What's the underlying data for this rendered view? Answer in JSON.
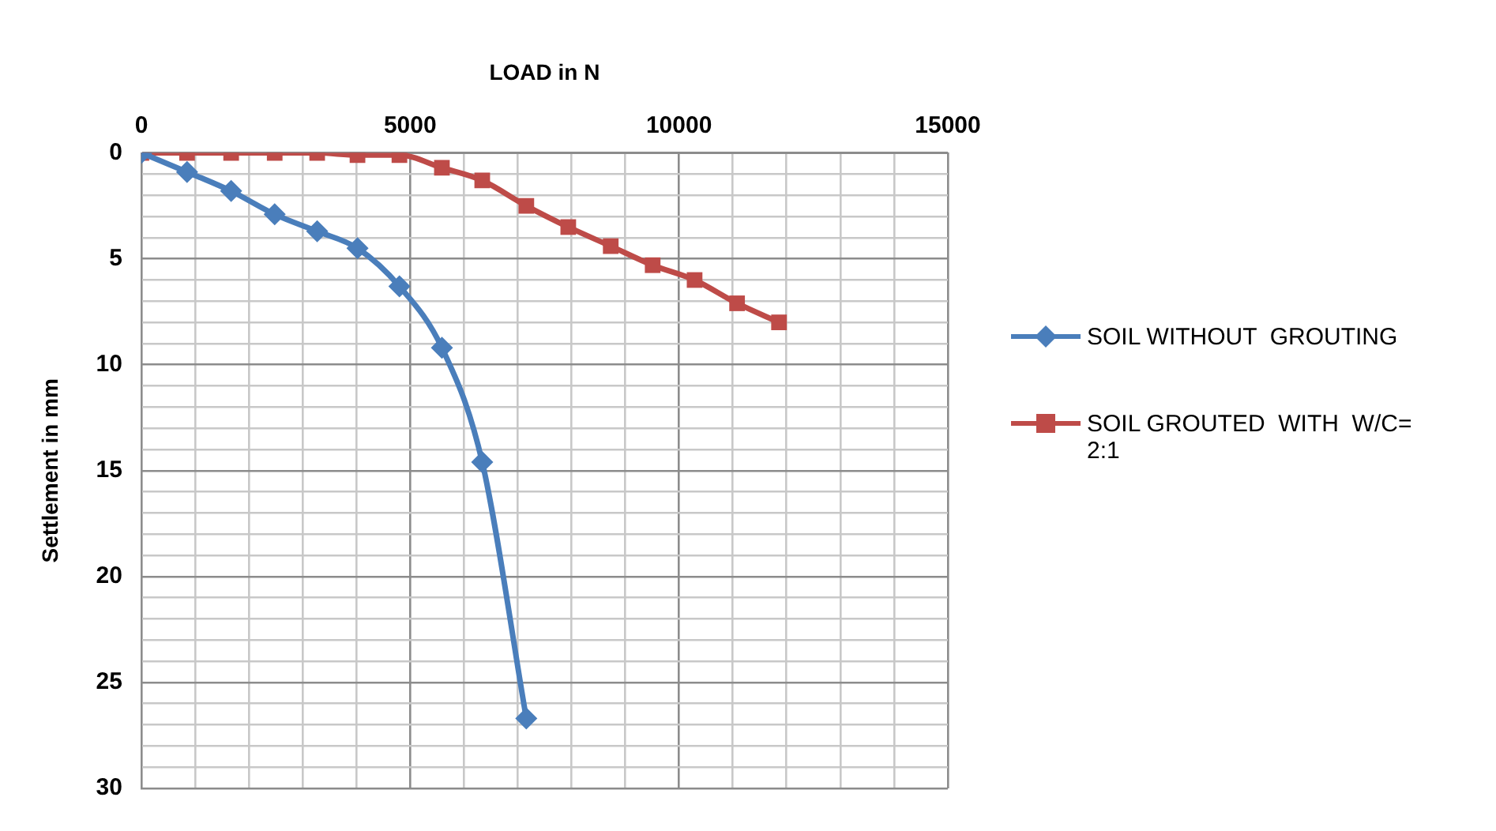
{
  "chart_data": {
    "type": "line",
    "xlabel": "LOAD in N",
    "ylabel": "Settlement in mm",
    "xlim": [
      0,
      15000
    ],
    "xticks": [
      0,
      {
        "value": 1000,
        "label": null
      },
      {
        "value": 2000,
        "label": null
      },
      {
        "value": 3000,
        "label": null
      },
      {
        "value": 4000,
        "label": null
      },
      5000,
      {
        "value": 6000,
        "label": null
      },
      {
        "value": 7000,
        "label": null
      },
      {
        "value": 8000,
        "label": null
      },
      {
        "value": 9000,
        "label": null
      },
      10000,
      {
        "value": 11000,
        "label": null
      },
      {
        "value": 12000,
        "label": null
      },
      {
        "value": 13000,
        "label": null
      },
      {
        "value": 14000,
        "label": null
      },
      15000
    ],
    "ylim": [
      30,
      0
    ],
    "yticks": [
      0,
      {
        "value": 1,
        "label": null
      },
      {
        "value": 2,
        "label": null
      },
      {
        "value": 3,
        "label": null
      },
      {
        "value": 4,
        "label": null
      },
      5,
      {
        "value": 6,
        "label": null
      },
      {
        "value": 7,
        "label": null
      },
      {
        "value": 8,
        "label": null
      },
      {
        "value": 9,
        "label": null
      },
      10,
      {
        "value": 11,
        "label": null
      },
      {
        "value": 12,
        "label": null
      },
      {
        "value": 13,
        "label": null
      },
      {
        "value": 14,
        "label": null
      },
      15,
      {
        "value": 16,
        "label": null
      },
      {
        "value": 17,
        "label": null
      },
      {
        "value": 18,
        "label": null
      },
      {
        "value": 19,
        "label": null
      },
      20,
      {
        "value": 21,
        "label": null
      },
      {
        "value": 22,
        "label": null
      },
      {
        "value": 23,
        "label": null
      },
      {
        "value": 24,
        "label": null
      },
      25,
      {
        "value": 26,
        "label": null
      },
      {
        "value": 27,
        "label": null
      },
      {
        "value": 28,
        "label": null
      },
      {
        "value": 29,
        "label": null
      },
      30
    ],
    "grid": true,
    "legend": "right",
    "series": [
      {
        "name": "SOIL WITHOUT  GROUTING",
        "color": "#4a7ebb",
        "marker": "diamond",
        "x": [
          0,
          850,
          1670,
          2480,
          3270,
          4020,
          4800,
          5590,
          6340,
          7160
        ],
        "values": [
          0,
          0.9,
          1.8,
          2.9,
          3.7,
          4.5,
          6.3,
          9.2,
          14.6,
          26.7
        ]
      },
      {
        "name": "SOIL GROUTED  WITH  W/C= 2:1",
        "color": "#be4b48",
        "marker": "square",
        "x": [
          0,
          850,
          1670,
          2480,
          3270,
          4020,
          4800,
          5590,
          6340,
          7160,
          7940,
          8730,
          9510,
          10290,
          11080,
          11860
        ],
        "values": [
          0,
          0,
          0,
          0,
          0,
          0.1,
          0.1,
          0.7,
          1.3,
          2.5,
          3.5,
          4.4,
          5.3,
          6.0,
          7.1,
          8.0
        ]
      }
    ]
  }
}
